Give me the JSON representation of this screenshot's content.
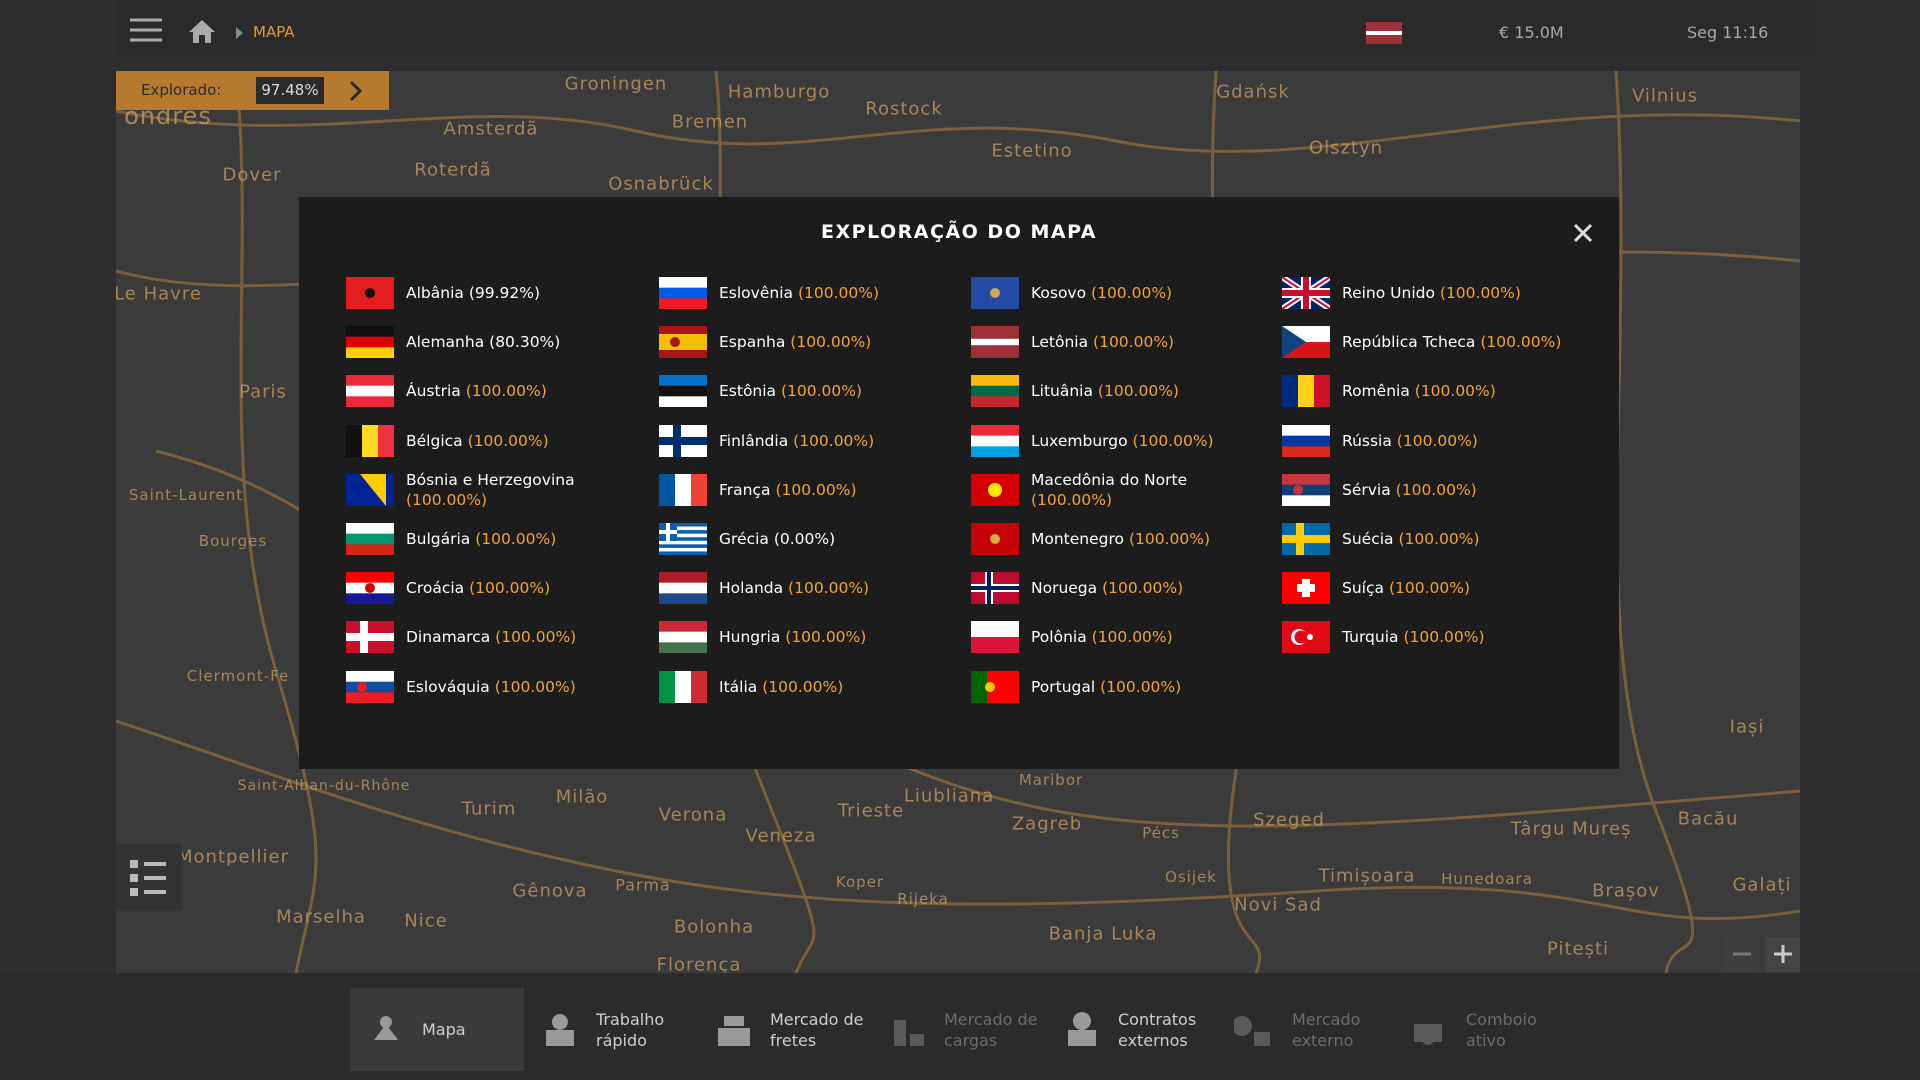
{
  "topbar": {
    "breadcrumb": "MAPA",
    "money": "€ 15.0M",
    "clock": "Seg 11:16"
  },
  "explored": {
    "label": "Explorado:",
    "value": "97.48%"
  },
  "map": {
    "labels": [
      "Groningen",
      "Hamburgo",
      "Rostock",
      "Gdańsk",
      "Vilnius",
      "Amsterdã",
      "Bremen",
      "Roterdã",
      "Osnabrück",
      "Estetino",
      "Olsztyn",
      "Dover",
      "ondres",
      "Le Havre",
      "Paris",
      "Saint-Laurent",
      "Bourges",
      "Clermont-Fe",
      "Saint-Alban-du-Rhône",
      "Montpellier",
      "Marselha",
      "Nice",
      "Turim",
      "Milão",
      "Gênova",
      "Verona",
      "Veneza",
      "Trieste",
      "Liubliana",
      "Maribor",
      "Zagreb",
      "Pécs",
      "Szeged",
      "Târgu Mureș",
      "Bacău",
      "Iași",
      "Parma",
      "Bolonha",
      "Florença",
      "Rijeka",
      "Osijek",
      "Novi Sad",
      "Timișoara",
      "Brașov",
      "Galați",
      "Banja Luka",
      "Pitești",
      "Koper",
      "Hunedoara"
    ]
  },
  "dialog": {
    "title": "EXPLORAÇÃO DO MAPA",
    "countries": [
      {
        "name": "Albânia",
        "percent": "(99.92%)",
        "color": "#ffffff"
      },
      {
        "name": "Alemanha",
        "percent": "(80.30%)",
        "color": "#ffffff"
      },
      {
        "name": "Áustria",
        "percent": "(100.00%)",
        "color": "#f2a43a"
      },
      {
        "name": "Bélgica",
        "percent": "(100.00%)",
        "color": "#f2a43a"
      },
      {
        "name": "Bósnia e Herzegovina",
        "percent": "(100.00%)",
        "color": "#f2a43a"
      },
      {
        "name": "Bulgária",
        "percent": "(100.00%)",
        "color": "#f2a43a"
      },
      {
        "name": "Croácia",
        "percent": "(100.00%)",
        "color": "#f2a43a"
      },
      {
        "name": "Dinamarca",
        "percent": "(100.00%)",
        "color": "#f2a43a"
      },
      {
        "name": "Eslováquia",
        "percent": "(100.00%)",
        "color": "#f2a43a"
      },
      {
        "name": "Eslovênia",
        "percent": "(100.00%)",
        "color": "#f2a43a"
      },
      {
        "name": "Espanha",
        "percent": "(100.00%)",
        "color": "#f2a43a"
      },
      {
        "name": "Estônia",
        "percent": "(100.00%)",
        "color": "#f2a43a"
      },
      {
        "name": "Finlândia",
        "percent": "(100.00%)",
        "color": "#f2a43a"
      },
      {
        "name": "França",
        "percent": "(100.00%)",
        "color": "#f2a43a"
      },
      {
        "name": "Grécia",
        "percent": "(0.00%)",
        "color": "#ffffff"
      },
      {
        "name": "Holanda",
        "percent": "(100.00%)",
        "color": "#f2a43a"
      },
      {
        "name": "Hungria",
        "percent": "(100.00%)",
        "color": "#f2a43a"
      },
      {
        "name": "Itália",
        "percent": "(100.00%)",
        "color": "#f2a43a"
      },
      {
        "name": "Kosovo",
        "percent": "(100.00%)",
        "color": "#f2a43a"
      },
      {
        "name": "Letônia",
        "percent": "(100.00%)",
        "color": "#f2a43a"
      },
      {
        "name": "Lituânia",
        "percent": "(100.00%)",
        "color": "#f2a43a"
      },
      {
        "name": "Luxemburgo",
        "percent": "(100.00%)",
        "color": "#f2a43a"
      },
      {
        "name": "Macedônia do Norte",
        "percent": "(100.00%)",
        "color": "#f2a43a"
      },
      {
        "name": "Montenegro",
        "percent": "(100.00%)",
        "color": "#f2a43a"
      },
      {
        "name": "Noruega",
        "percent": "(100.00%)",
        "color": "#f2a43a"
      },
      {
        "name": "Polônia",
        "percent": "(100.00%)",
        "color": "#f2a43a"
      },
      {
        "name": "Portugal",
        "percent": "(100.00%)",
        "color": "#f2a43a"
      },
      {
        "name": "Reino Unido",
        "percent": "(100.00%)",
        "color": "#f2a43a"
      },
      {
        "name": "República Tcheca",
        "percent": "(100.00%)",
        "color": "#f2a43a"
      },
      {
        "name": "Romênia",
        "percent": "(100.00%)",
        "color": "#f2a43a"
      },
      {
        "name": "Rússia",
        "percent": "(100.00%)",
        "color": "#f2a43a"
      },
      {
        "name": "Sérvia",
        "percent": "(100.00%)",
        "color": "#f2a43a"
      },
      {
        "name": "Suécia",
        "percent": "(100.00%)",
        "color": "#f2a43a"
      },
      {
        "name": "Suíça",
        "percent": "(100.00%)",
        "color": "#f2a43a"
      },
      {
        "name": "Turquia",
        "percent": "(100.00%)",
        "color": "#f2a43a"
      }
    ]
  },
  "nav": [
    {
      "lines": [
        "Mapa"
      ],
      "active": true,
      "enabled": true
    },
    {
      "lines": [
        "Trabalho",
        "rápido"
      ],
      "active": false,
      "enabled": true
    },
    {
      "lines": [
        "Mercado de",
        "fretes"
      ],
      "active": false,
      "enabled": true
    },
    {
      "lines": [
        "Mercado de",
        "cargas"
      ],
      "active": false,
      "enabled": false
    },
    {
      "lines": [
        "Contratos",
        "externos"
      ],
      "active": false,
      "enabled": true
    },
    {
      "lines": [
        "Mercado",
        "externo"
      ],
      "active": false,
      "enabled": false
    },
    {
      "lines": [
        "Comboio",
        "ativo"
      ],
      "active": false,
      "enabled": false
    }
  ]
}
